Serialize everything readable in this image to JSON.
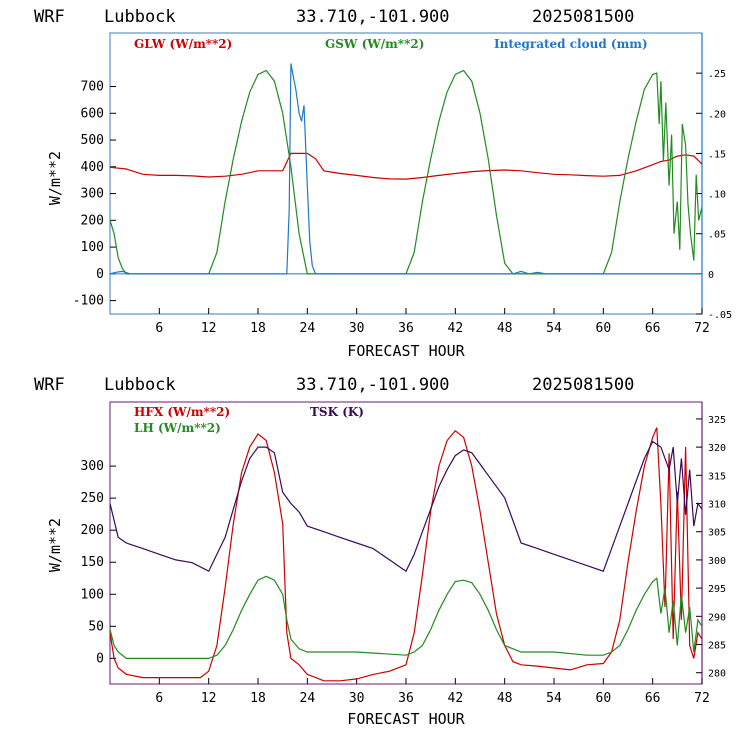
{
  "header": {
    "model": "WRF",
    "station": "Lubbock",
    "coords": "33.710,-101.900",
    "run": "2025081500"
  },
  "chart_data": [
    {
      "type": "line",
      "xlabel": "FORECAST HOUR",
      "ylabel": "W/m**2",
      "xlim": [
        0,
        72
      ],
      "ylim": [
        -150,
        900
      ],
      "x_ticks": [
        "6",
        "12",
        "18",
        "24",
        "30",
        "36",
        "42",
        "48",
        "54",
        "60",
        "66",
        "72"
      ],
      "y_ticks": [
        "-100",
        "0",
        "100",
        "200",
        "300",
        "400",
        "500",
        "600",
        "700"
      ],
      "y2lim": [
        -0.05,
        0.3
      ],
      "y2_ticks": [
        "-.05",
        "0",
        ".05",
        ".10",
        ".15",
        ".20",
        ".25"
      ],
      "series": [
        {
          "name": "GLW (W/m**2)",
          "color": "#cc0000",
          "axis": "left",
          "x": [
            0,
            2,
            4,
            6,
            8,
            10,
            12,
            14,
            16,
            18,
            20,
            21,
            22,
            24,
            25,
            26,
            28,
            30,
            32,
            34,
            36,
            38,
            40,
            42,
            44,
            46,
            48,
            50,
            52,
            54,
            56,
            58,
            60,
            62,
            64,
            66,
            67,
            68,
            69,
            70,
            71,
            72
          ],
          "y": [
            398,
            392,
            372,
            368,
            368,
            366,
            362,
            365,
            372,
            385,
            385,
            385,
            450,
            450,
            430,
            385,
            375,
            368,
            360,
            355,
            354,
            360,
            368,
            375,
            382,
            386,
            388,
            385,
            378,
            372,
            370,
            367,
            365,
            368,
            385,
            408,
            420,
            425,
            440,
            445,
            440,
            410
          ]
        },
        {
          "name": "GSW (W/m**2)",
          "color": "#228b22",
          "axis": "left",
          "x": [
            0,
            0.5,
            1,
            1.5,
            2,
            3,
            6,
            9,
            11,
            12,
            13,
            14,
            15,
            16,
            17,
            18,
            19,
            20,
            21,
            22,
            23,
            24,
            30,
            35,
            36,
            37,
            38,
            39,
            40,
            41,
            42,
            43,
            44,
            45,
            46,
            47,
            48,
            49,
            50,
            54,
            59,
            60,
            61,
            62,
            63,
            64,
            65,
            66,
            66.5,
            66.8,
            67,
            67.3,
            67.6,
            68,
            68.3,
            68.6,
            69,
            69.3,
            69.6,
            70,
            70.3,
            70.6,
            71,
            71.3,
            71.6,
            72
          ],
          "y": [
            200,
            150,
            60,
            20,
            0,
            0,
            0,
            0,
            0,
            0,
            80,
            270,
            430,
            570,
            680,
            745,
            760,
            720,
            600,
            400,
            150,
            0,
            0,
            0,
            0,
            80,
            270,
            430,
            570,
            680,
            745,
            760,
            720,
            600,
            430,
            220,
            40,
            0,
            0,
            0,
            0,
            0,
            80,
            270,
            430,
            570,
            690,
            745,
            750,
            560,
            720,
            420,
            640,
            330,
            520,
            150,
            270,
            90,
            560,
            480,
            260,
            150,
            50,
            370,
            200,
            250
          ]
        },
        {
          "name": "Integrated cloud (mm)",
          "color": "#1f78c8",
          "axis": "right",
          "x": [
            0,
            0.7,
            1.5,
            2.5,
            3,
            10,
            21.5,
            21.8,
            22,
            22.3,
            22.6,
            23,
            23.3,
            23.6,
            24,
            24.3,
            24.6,
            25,
            26,
            49,
            50,
            51,
            52,
            53,
            54,
            72
          ],
          "y": [
            0,
            0.002,
            0.003,
            0,
            0,
            0,
            0,
            0.08,
            0.262,
            0.245,
            0.23,
            0.2,
            0.19,
            0.21,
            0.11,
            0.04,
            0.01,
            0,
            0,
            0,
            0.003,
            0,
            0.002,
            0,
            0,
            0
          ]
        }
      ]
    },
    {
      "type": "line",
      "xlabel": "FORECAST HOUR",
      "ylabel": "W/m**2",
      "xlim": [
        0,
        72
      ],
      "ylim": [
        -40,
        400
      ],
      "x_ticks": [
        "6",
        "12",
        "18",
        "24",
        "30",
        "36",
        "42",
        "48",
        "54",
        "60",
        "66",
        "72"
      ],
      "y_ticks": [
        "0",
        "50",
        "100",
        "150",
        "200",
        "250",
        "300"
      ],
      "y2lim": [
        278,
        328
      ],
      "y2_ticks": [
        "280",
        "285",
        "290",
        "295",
        "300",
        "305",
        "310",
        "315",
        "320",
        "325"
      ],
      "series": [
        {
          "name": "HFX (W/m**2)",
          "color": "#cc0000",
          "axis": "left",
          "x": [
            0,
            0.5,
            1,
            2,
            4,
            8,
            11,
            12,
            13,
            14,
            15,
            16,
            17,
            18,
            19,
            20,
            21,
            21.5,
            22,
            23,
            24,
            25,
            26,
            28,
            30,
            32,
            34,
            36,
            37,
            38,
            39,
            40,
            41,
            42,
            43,
            44,
            45,
            46,
            47,
            48,
            49,
            50,
            52,
            54,
            56,
            58,
            60,
            61,
            62,
            63,
            64,
            65,
            66,
            66.5,
            67,
            67.5,
            68,
            68.5,
            69,
            69.5,
            70,
            70.5,
            71,
            71.5,
            72
          ],
          "y": [
            40,
            0,
            -15,
            -25,
            -30,
            -30,
            -30,
            -20,
            20,
            110,
            210,
            290,
            330,
            350,
            340,
            290,
            210,
            40,
            0,
            -10,
            -25,
            -30,
            -35,
            -35,
            -32,
            -25,
            -20,
            -10,
            40,
            130,
            230,
            300,
            340,
            355,
            345,
            300,
            230,
            150,
            70,
            20,
            -5,
            -10,
            -12,
            -15,
            -18,
            -10,
            -8,
            10,
            60,
            150,
            230,
            300,
            345,
            360,
            240,
            80,
            320,
            30,
            260,
            60,
            330,
            20,
            0,
            40,
            30
          ]
        },
        {
          "name": "LH (W/m**2)",
          "color": "#228b22",
          "axis": "left",
          "x": [
            0,
            0.5,
            1,
            2,
            4,
            10,
            12,
            13,
            14,
            15,
            16,
            17,
            18,
            19,
            20,
            21,
            21.5,
            22,
            23,
            24,
            30,
            36,
            37,
            38,
            39,
            40,
            41,
            42,
            43,
            44,
            45,
            46,
            47,
            48,
            50,
            54,
            58,
            60,
            61,
            62,
            63,
            64,
            65,
            66,
            66.5,
            67,
            67.5,
            68,
            68.5,
            69,
            69.5,
            70,
            70.5,
            71,
            71.5,
            72
          ],
          "y": [
            45,
            20,
            10,
            0,
            0,
            0,
            0,
            5,
            20,
            45,
            75,
            100,
            122,
            128,
            122,
            100,
            60,
            30,
            15,
            10,
            10,
            5,
            10,
            20,
            45,
            75,
            100,
            120,
            122,
            118,
            100,
            75,
            45,
            20,
            10,
            10,
            5,
            5,
            10,
            20,
            45,
            75,
            100,
            120,
            125,
            70,
            110,
            40,
            90,
            20,
            100,
            40,
            80,
            10,
            60,
            50
          ]
        },
        {
          "name": "TSK (K)",
          "color": "#3a0a5a",
          "axis": "right",
          "x": [
            0,
            0.5,
            1,
            2,
            4,
            6,
            8,
            10,
            12,
            13,
            14,
            15,
            16,
            17,
            18,
            19,
            20,
            21,
            22,
            23,
            24,
            26,
            28,
            30,
            32,
            34,
            36,
            37,
            38,
            39,
            40,
            41,
            42,
            43,
            44,
            45,
            46,
            48,
            50,
            52,
            54,
            56,
            58,
            60,
            61,
            62,
            63,
            64,
            65,
            66,
            67,
            67.5,
            68,
            68.5,
            69,
            69.5,
            70,
            70.5,
            71,
            71.5,
            72
          ],
          "y": [
            310,
            307,
            304,
            303,
            302,
            301,
            300,
            299.5,
            298,
            301,
            304,
            309,
            314,
            318,
            320,
            320,
            319,
            312,
            310,
            308.5,
            306,
            305,
            304,
            303,
            302,
            300,
            298,
            301,
            305,
            309,
            313,
            316,
            318.5,
            319.5,
            319,
            317,
            315,
            311,
            303,
            302,
            301,
            300,
            299,
            298,
            302,
            306,
            310,
            314,
            318,
            321,
            320,
            318,
            316,
            320,
            310,
            318,
            308,
            316,
            306,
            310,
            309
          ]
        }
      ]
    }
  ]
}
